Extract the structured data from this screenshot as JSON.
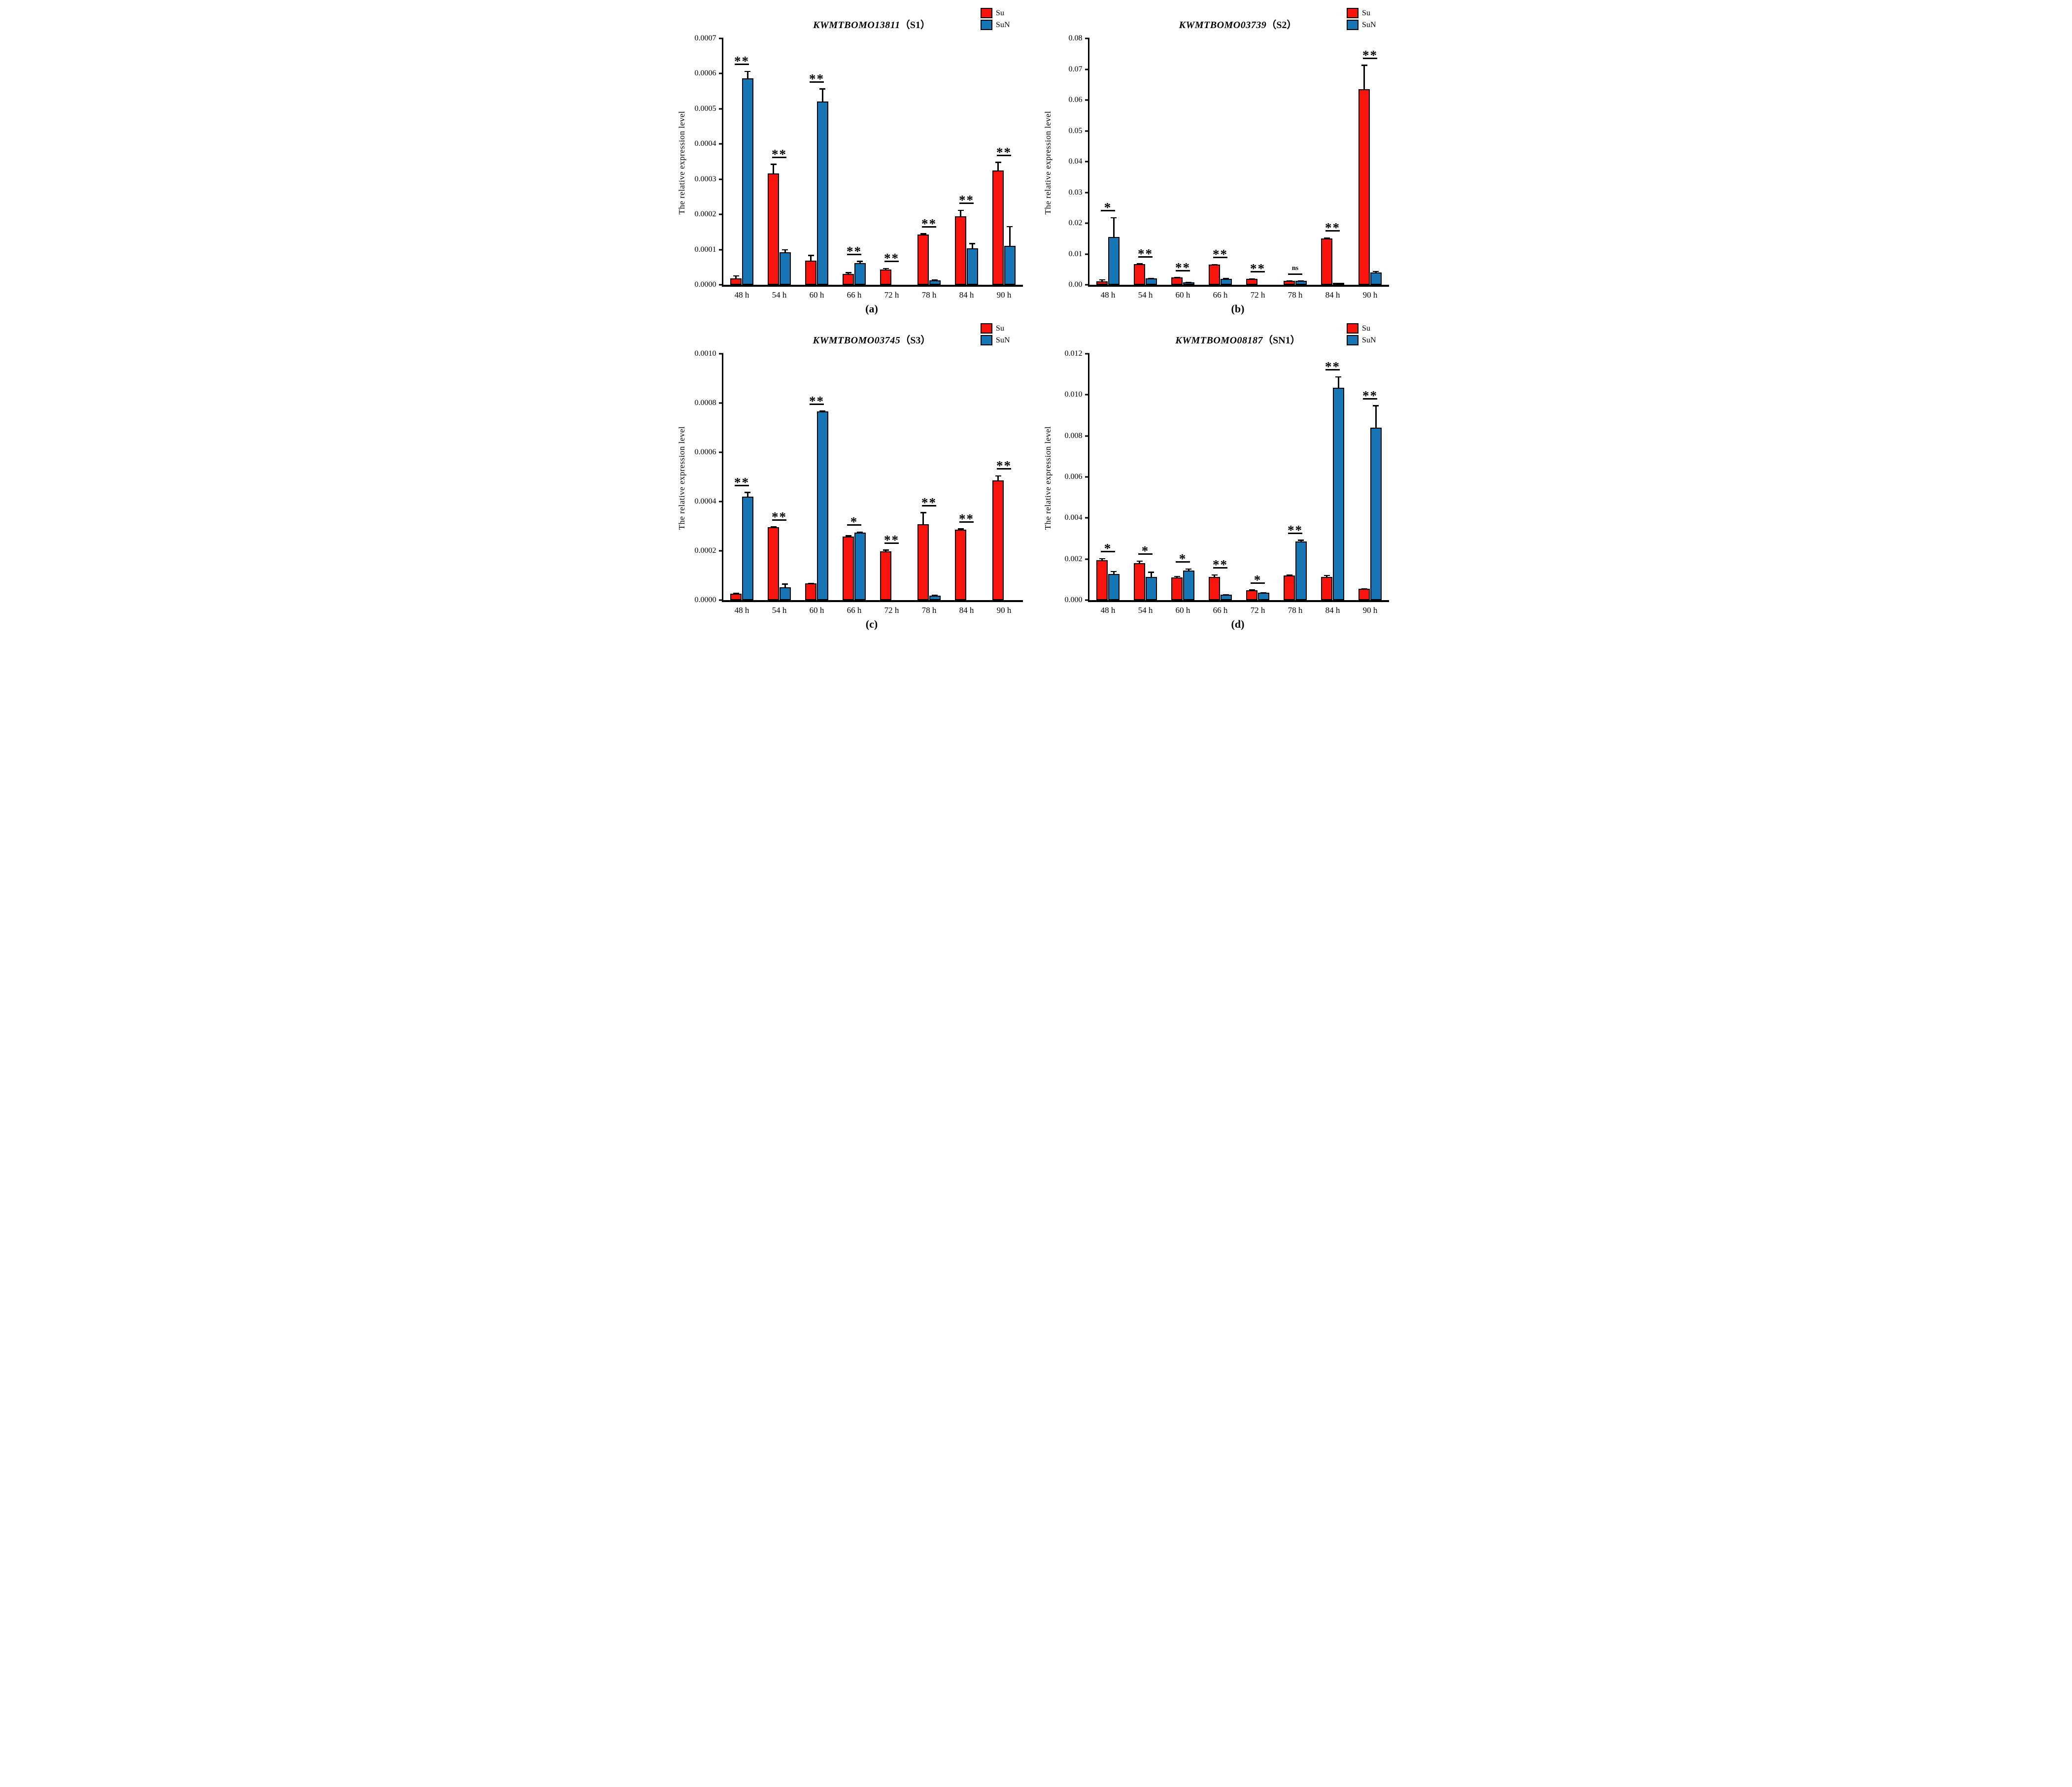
{
  "figure_caption_letters": [
    "(a)",
    "(b)",
    "(c)",
    "(d)"
  ],
  "colors": {
    "su": "#F8130C",
    "sun": "#1776B6",
    "axis": "#000000"
  },
  "chart_data": [
    {
      "type": "bar",
      "panel_label": "(a)",
      "title_gene": "KWMTBOMO13811",
      "title_tag": "（S1）",
      "ylabel": "The relative expression level",
      "xlabel": "",
      "categories": [
        "48 h",
        "54 h",
        "60 h",
        "66 h",
        "72 h",
        "78 h",
        "84 h",
        "90 h"
      ],
      "ylim": [
        0,
        0.0007
      ],
      "yticks": [
        "0.0000",
        "0.0001",
        "0.0002",
        "0.0003",
        "0.0004",
        "0.0005",
        "0.0006",
        "0.0007"
      ],
      "grid": "off",
      "legend_position": "top-right",
      "series": [
        {
          "name": "Su",
          "color": "#F8130C",
          "values": [
            1.8e-05,
            0.000317,
            6.8e-05,
            3.1e-05,
            4.3e-05,
            0.000143,
            0.000194,
            0.000325
          ],
          "errors": [
            9e-06,
            2.7e-05,
            1.7e-05,
            5e-06,
            5e-06,
            4e-06,
            1.9e-05,
            2.5e-05
          ]
        },
        {
          "name": "SuN",
          "color": "#1776B6",
          "values": [
            0.000587,
            9.3e-05,
            0.000521,
            6.2e-05,
            0,
            1.2e-05,
            0.000104,
            0.00011
          ],
          "errors": [
            2.1e-05,
            8e-06,
            3.7e-05,
            6e-06,
            0,
            3e-06,
            1.5e-05,
            5.7e-05
          ]
        }
      ],
      "significance": [
        "**",
        "**",
        "**",
        "**",
        "**",
        "**",
        "**",
        "**"
      ]
    },
    {
      "type": "bar",
      "panel_label": "(b)",
      "title_gene": "KWMTBOMO03739",
      "title_tag": "（S2）",
      "ylabel": "The relative expression level",
      "xlabel": "",
      "categories": [
        "48 h",
        "54 h",
        "60 h",
        "66 h",
        "72 h",
        "78 h",
        "84 h",
        "90 h"
      ],
      "ylim": [
        0,
        0.08
      ],
      "yticks": [
        "0.00",
        "0.01",
        "0.02",
        "0.03",
        "0.04",
        "0.05",
        "0.06",
        "0.07",
        "0.08"
      ],
      "grid": "off",
      "legend_position": "top-right",
      "series": [
        {
          "name": "Su",
          "color": "#F8130C",
          "values": [
            0.0011,
            0.0068,
            0.0024,
            0.0065,
            0.0019,
            0.0013,
            0.015,
            0.0635
          ],
          "errors": [
            0.0007,
            0.0002,
            0.0001,
            0.0003,
            0.0002,
            0.0001,
            0.0004,
            0.008
          ]
        },
        {
          "name": "SuN",
          "color": "#1776B6",
          "values": [
            0.0155,
            0.0021,
            0.0008,
            0.002,
            0,
            0.0013,
            0.0002,
            0.004
          ],
          "errors": [
            0.0065,
            0.0002,
            0.0001,
            0.0002,
            0,
            0.0001,
            0,
            0.0005
          ]
        }
      ],
      "significance": [
        "*",
        "**",
        "**",
        "**",
        "**",
        "ns",
        "**",
        "**"
      ]
    },
    {
      "type": "bar",
      "panel_label": "(c)",
      "title_gene": "KWMTBOMO03745",
      "title_tag": "（S3）",
      "ylabel": "The relative expression level",
      "xlabel": "",
      "categories": [
        "48 h",
        "54 h",
        "60 h",
        "66 h",
        "72 h",
        "78 h",
        "84 h",
        "90 h"
      ],
      "ylim": [
        0,
        0.001
      ],
      "yticks": [
        "0.0000",
        "0.0002",
        "0.0004",
        "0.0006",
        "0.0008",
        "0.0010"
      ],
      "grid": "off",
      "legend_position": "top-right",
      "series": [
        {
          "name": "Su",
          "color": "#F8130C",
          "values": [
            2.7e-05,
            0.000297,
            6.8e-05,
            0.000258,
            0.000198,
            0.000308,
            0.000287,
            0.000487
          ],
          "errors": [
            4e-06,
            3e-06,
            2e-06,
            6e-06,
            8e-06,
            5e-05,
            5e-06,
            2e-05
          ]
        },
        {
          "name": "SuN",
          "color": "#1776B6",
          "values": [
            0.00042,
            5.3e-05,
            0.000767,
            0.000275,
            0,
            1.8e-05,
            0,
            0
          ],
          "errors": [
            2e-05,
            1.5e-05,
            3e-06,
            4e-06,
            0,
            4e-06,
            0,
            0
          ]
        }
      ],
      "significance": [
        "**",
        "**",
        "**",
        "*",
        "**",
        "**",
        "**",
        "**"
      ]
    },
    {
      "type": "bar",
      "panel_label": "(d)",
      "title_gene": "KWMTBOMO08187",
      "title_tag": "（SN1）",
      "ylabel": "The relative expression level",
      "xlabel": "",
      "categories": [
        "48 h",
        "54 h",
        "60 h",
        "66 h",
        "72 h",
        "78 h",
        "84 h",
        "90 h"
      ],
      "ylim": [
        0,
        0.012
      ],
      "yticks": [
        "0.000",
        "0.002",
        "0.004",
        "0.006",
        "0.008",
        "0.010",
        "0.012"
      ],
      "grid": "off",
      "legend_position": "top-right",
      "series": [
        {
          "name": "Su",
          "color": "#F8130C",
          "values": [
            0.00195,
            0.00181,
            0.0011,
            0.00113,
            0.00048,
            0.0012,
            0.00113,
            0.00055
          ],
          "errors": [
            0.0001,
            0.00012,
            8e-05,
            0.00012,
            4e-05,
            4e-05,
            0.0001,
            3e-05
          ]
        },
        {
          "name": "SuN",
          "color": "#1776B6",
          "values": [
            0.00128,
            0.00113,
            0.00145,
            0.00026,
            0.00036,
            0.00285,
            0.01035,
            0.0084
          ],
          "errors": [
            0.00014,
            0.00026,
            9e-05,
            2e-05,
            3e-05,
            0.0001,
            0.00055,
            0.0011
          ]
        }
      ],
      "significance": [
        "*",
        "*",
        "*",
        "**",
        "*",
        "**",
        "**",
        "**"
      ]
    }
  ]
}
